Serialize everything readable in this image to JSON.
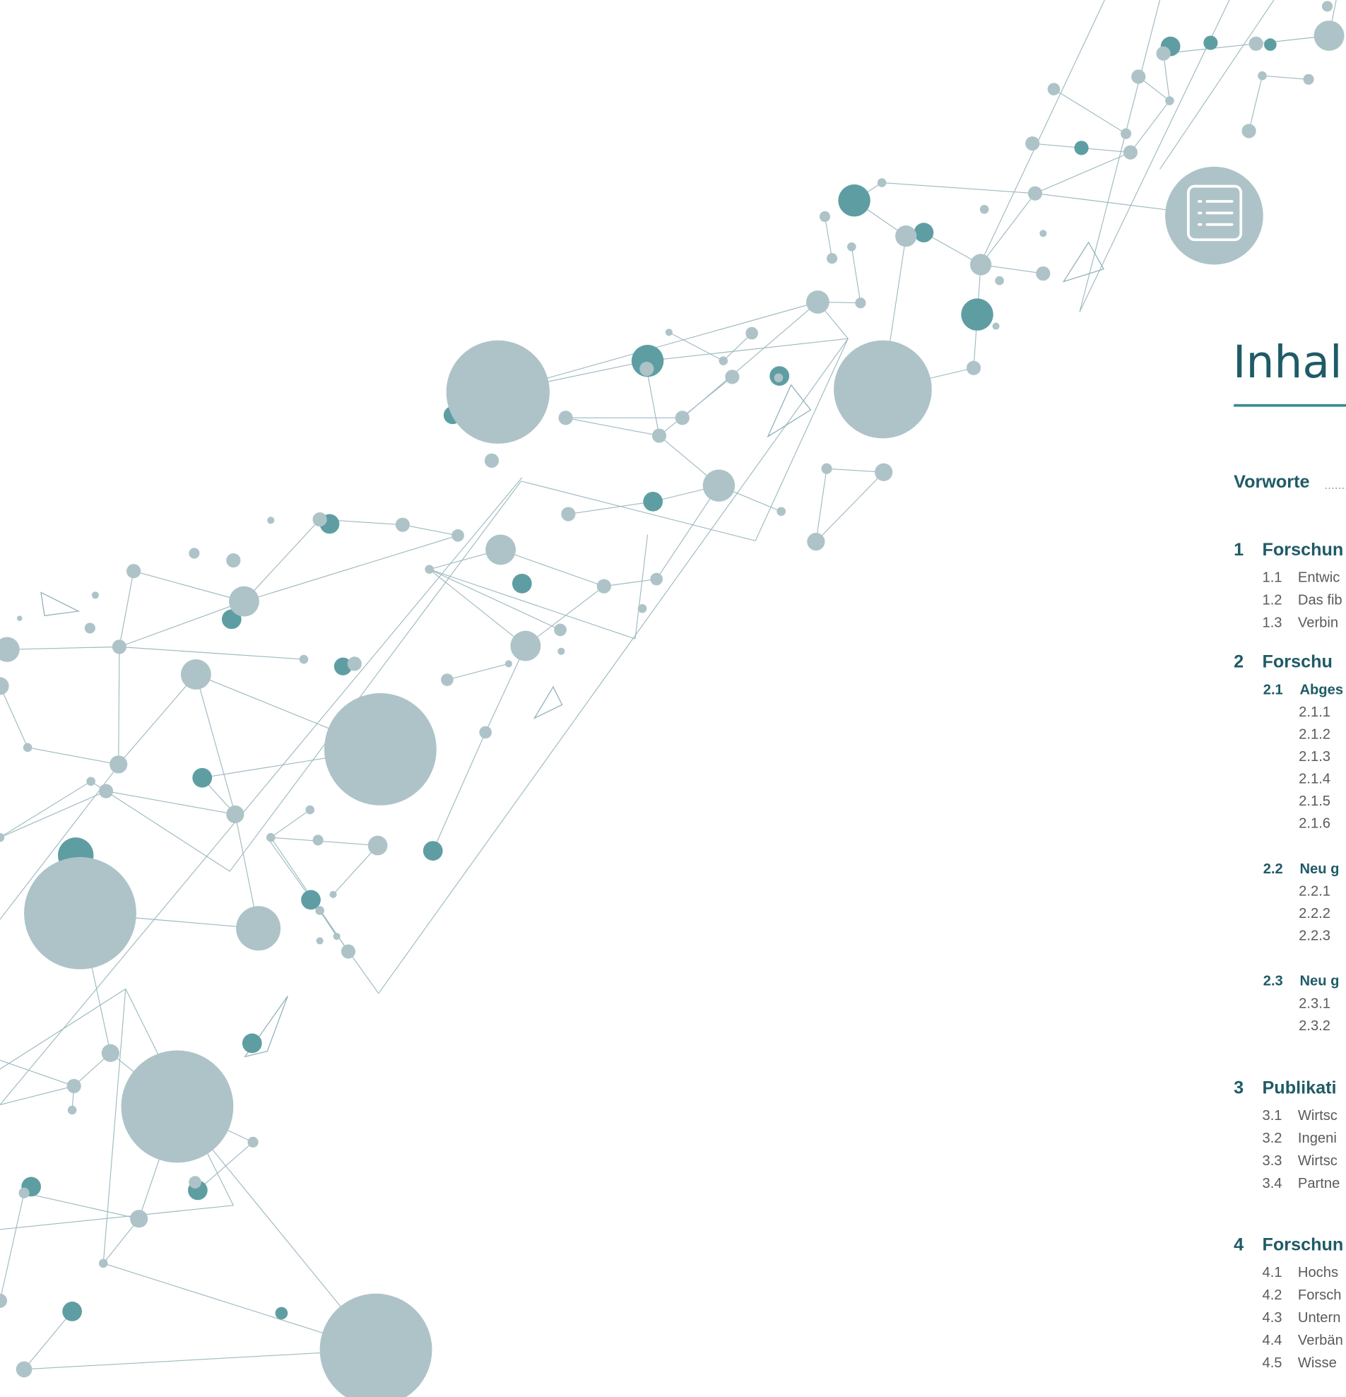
{
  "title": "Inhal",
  "preface": "Vorworte",
  "sections": [
    {
      "number": "1",
      "title": "Forschun",
      "items": [
        {
          "number": "1.1",
          "title": "Entwic"
        },
        {
          "number": "1.2",
          "title": "Das fib"
        },
        {
          "number": "1.3",
          "title": "Verbin"
        }
      ]
    },
    {
      "number": "2",
      "title": "Forschu",
      "items": [
        {
          "number": "2.1",
          "title": "Abges",
          "items": [
            {
              "number": "2.1.1"
            },
            {
              "number": "2.1.2"
            },
            {
              "number": "2.1.3"
            },
            {
              "number": "2.1.4"
            },
            {
              "number": "2.1.5"
            },
            {
              "number": "2.1.6"
            }
          ]
        },
        {
          "number": "2.2",
          "title": "Neu g",
          "items": [
            {
              "number": "2.2.1"
            },
            {
              "number": "2.2.2"
            },
            {
              "number": "2.2.3"
            }
          ]
        },
        {
          "number": "2.3",
          "title": "Neu g",
          "items": [
            {
              "number": "2.3.1"
            },
            {
              "number": "2.3.2"
            }
          ]
        }
      ]
    },
    {
      "number": "3",
      "title": "Publikati",
      "items": [
        {
          "number": "3.1",
          "title": "Wirtsc"
        },
        {
          "number": "3.2",
          "title": "Ingeni"
        },
        {
          "number": "3.3",
          "title": "Wirtsc"
        },
        {
          "number": "3.4",
          "title": "Partne"
        }
      ]
    },
    {
      "number": "4",
      "title": "Forschun",
      "items": [
        {
          "number": "4.1",
          "title": "Hochs"
        },
        {
          "number": "4.2",
          "title": "Forsch"
        },
        {
          "number": "4.3",
          "title": "Untern"
        },
        {
          "number": "4.4",
          "title": "Verbän"
        },
        {
          "number": "4.5",
          "title": "Wisse"
        }
      ]
    }
  ]
}
